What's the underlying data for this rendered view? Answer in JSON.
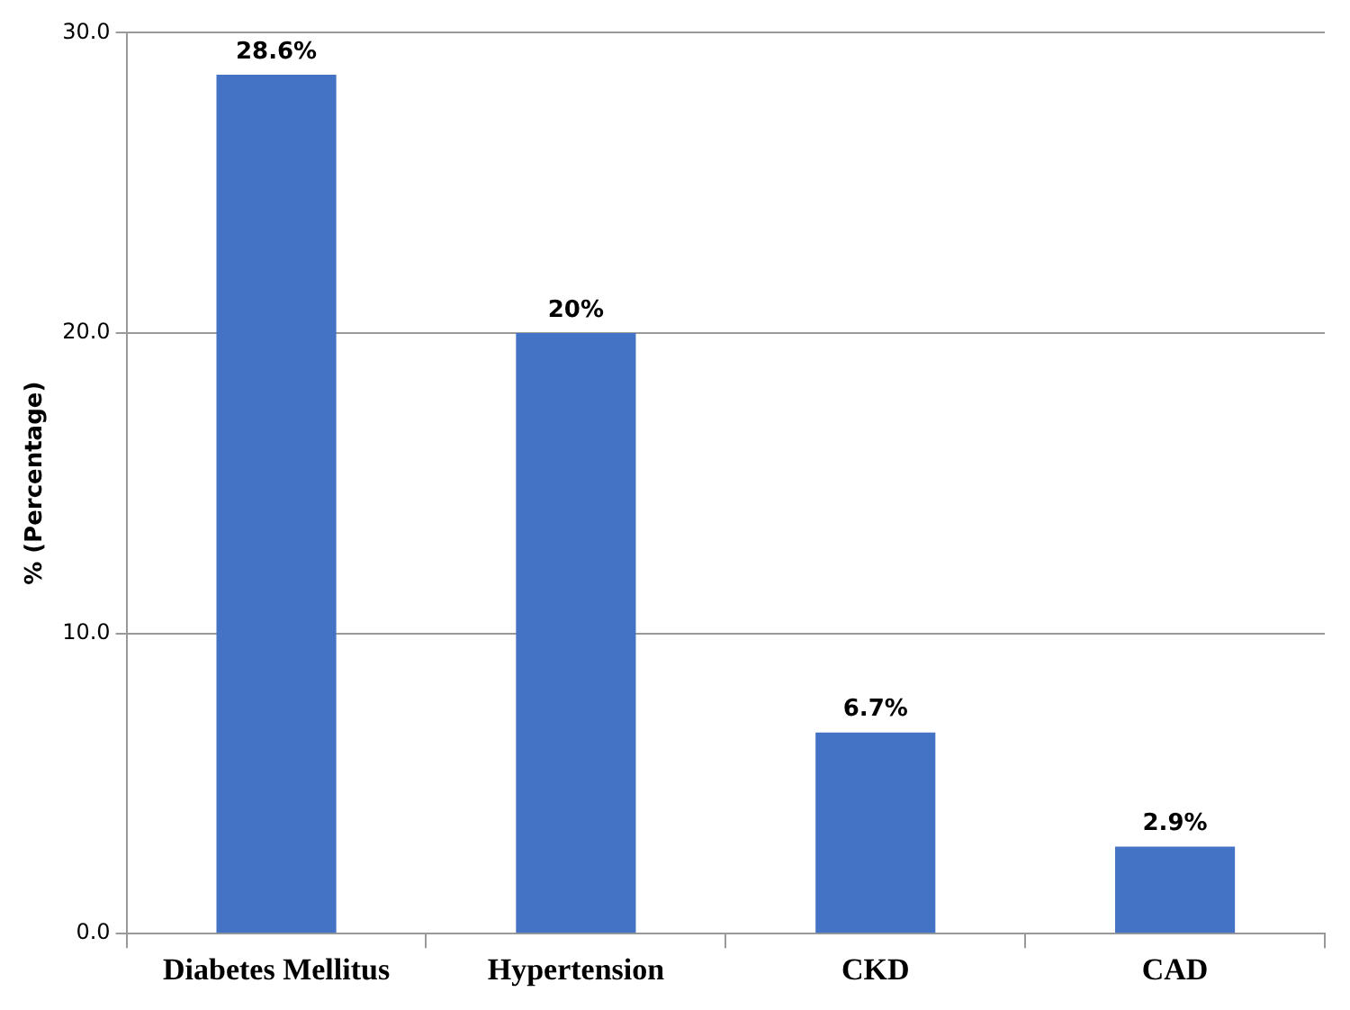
{
  "chart_data": {
    "type": "bar",
    "ylabel": "% (Percentage)",
    "categories": [
      "Diabetes Mellitus",
      "Hypertension",
      "CKD",
      "CAD"
    ],
    "values": [
      28.6,
      20,
      6.7,
      2.9
    ],
    "value_labels": [
      "28.6%",
      "20%",
      "6.7%",
      "2.9%"
    ],
    "color": "#4472c4",
    "ylim": [
      0,
      30
    ],
    "yticks": [
      {
        "value": 0,
        "label": "0.0"
      },
      {
        "value": 10,
        "label": "10.0"
      },
      {
        "value": 20,
        "label": "20.0"
      },
      {
        "value": 30,
        "label": "30.0"
      }
    ],
    "grid": "y",
    "legend": false
  }
}
